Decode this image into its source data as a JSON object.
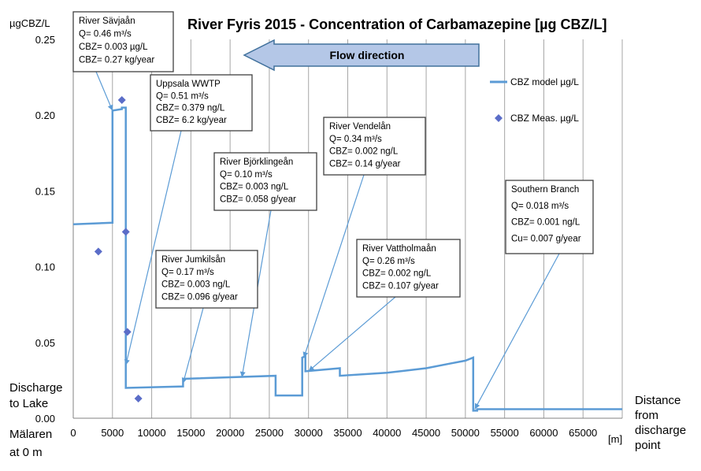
{
  "chart_data": {
    "type": "line",
    "title": "River Fyris 2015  - Concentration of Carbamazepine [µg CBZ/L]",
    "ylabel": "µgCBZ/L",
    "xunit": "[m]",
    "left_label": [
      "Discharge",
      "to Lake",
      "Mälaren",
      "at 0 m"
    ],
    "right_label": [
      "Distance",
      "from",
      "discharge",
      "point"
    ],
    "xlim": [
      0,
      70000
    ],
    "ylim": [
      0,
      0.25
    ],
    "xticks": [
      "0",
      "5000",
      "10000",
      "15000",
      "20000",
      "25000",
      "30000",
      "35000",
      "40000",
      "45000",
      "50000",
      "55000",
      "60000",
      "65000"
    ],
    "yticks": [
      "0.00",
      "0.05",
      "0.10",
      "0.15",
      "0.20",
      "0.25"
    ],
    "grid": "vertical",
    "legend_position": "right",
    "flow_label": "Flow direction",
    "series": [
      {
        "name": "CBZ model µg/L",
        "color": "#5b9bd5",
        "x": [
          0,
          5000,
          5000,
          6200,
          6200,
          6700,
          6700,
          14000,
          14000,
          25800,
          25800,
          29200,
          29200,
          29600,
          29600,
          34000,
          34000,
          40000,
          45000,
          48000,
          50000,
          51000,
          51000,
          51500,
          51500,
          70000
        ],
        "y": [
          0.128,
          0.129,
          0.203,
          0.204,
          0.205,
          0.205,
          0.02,
          0.021,
          0.026,
          0.028,
          0.015,
          0.015,
          0.04,
          0.041,
          0.031,
          0.033,
          0.028,
          0.03,
          0.033,
          0.036,
          0.038,
          0.04,
          0.005,
          0.005,
          0.006,
          0.006
        ]
      },
      {
        "name": "CBZ Meas. µg/L",
        "color": "#5b6dc8",
        "marker": "diamond",
        "x": [
          3200,
          6200,
          6700,
          6900,
          8300
        ],
        "y": [
          0.11,
          0.21,
          0.123,
          0.057,
          0.013
        ]
      }
    ],
    "annotations": [
      {
        "lines": [
          "River Sävjaån",
          "Q= 0.46 m³/s",
          "CBZ= 0.003 µg/L",
          "CBZ= 0.27 kg/year"
        ],
        "target": [
          5000,
          0.203
        ]
      },
      {
        "lines": [
          "Uppsala WWTP",
          "Q= 0.51 m³/s",
          "CBZ= 0.379 ng/L",
          "CBZ= 6.2 kg/year"
        ],
        "target": [
          6700,
          0.035
        ]
      },
      {
        "lines": [
          "River Björklingeån",
          "Q= 0.10 m³/s",
          "CBZ= 0.003 ng/L",
          "CBZ= 0.058 g/year"
        ],
        "target": [
          21500,
          0.027
        ]
      },
      {
        "lines": [
          "River Vendelån",
          "Q= 0.34 m³/s",
          "CBZ= 0.002 ng/L",
          "CBZ= 0.14 g/year"
        ],
        "target": [
          29400,
          0.04
        ]
      },
      {
        "lines": [
          "River Jumkilsån",
          "Q= 0.17 m³/s",
          "CBZ= 0.003 ng/L",
          "CBZ= 0.096 g/year"
        ],
        "target": [
          14000,
          0.023
        ]
      },
      {
        "lines": [
          "River Vattholmaån",
          "Q= 0.26 m³/s",
          "CBZ= 0.002 ng/L",
          "CBZ= 0.107 g/year"
        ],
        "target": [
          30000,
          0.031
        ]
      },
      {
        "lines": [
          "Southern Branch",
          "Q= 0.018 m³/s",
          "CBZ= 0.001  ng/L",
          "Cu=  0.007 g/year"
        ],
        "target": [
          51200,
          0.006
        ]
      }
    ]
  }
}
